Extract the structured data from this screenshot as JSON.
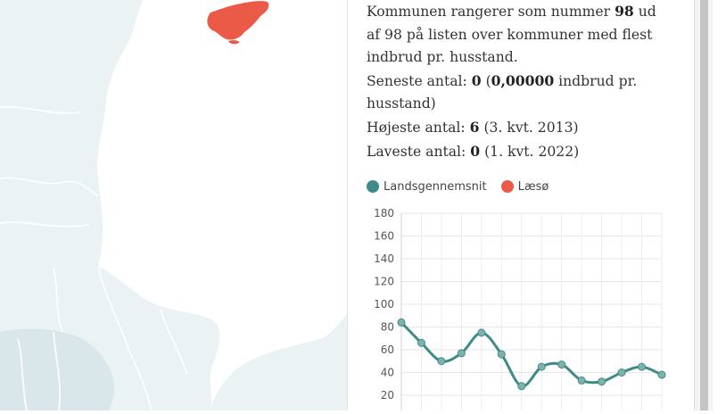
{
  "colors": {
    "accent_red": "#ea5a47",
    "series_national": "#3f8b89",
    "map_land": "#eaf2f4",
    "map_water": "#ffffff"
  },
  "info": {
    "rank_prefix": "Kommunen rangerer som nummer",
    "rank": "98",
    "rank_mid": "ud af",
    "total": "98",
    "rank_suffix": "på listen over kommuner med flest indbrud pr. husstand.",
    "latest_label": "Seneste antal:",
    "latest_value": "0",
    "latest_rate": "0,00000",
    "latest_rate_suffix": "indbrud pr. husstand)",
    "highest_label": "Højeste antal:",
    "highest_value": "6",
    "highest_period": "(3. kvt. 2013)",
    "lowest_label": "Laveste antal:",
    "lowest_value": "0",
    "lowest_period": "(1. kvt. 2022)"
  },
  "legend": {
    "items": [
      {
        "label": "Landsgennemsnit",
        "icon": "dot-teal-icon"
      },
      {
        "label": "Læsø",
        "icon": "dot-red-icon"
      }
    ]
  },
  "chart_data": {
    "type": "line",
    "y_ticks": [
      "180",
      "160",
      "140",
      "120",
      "100",
      "80",
      "60",
      "40",
      "20"
    ],
    "ylim": [
      0,
      180
    ],
    "grid": true,
    "series": [
      {
        "name": "Landsgennemsnit",
        "color": "#3f8b89",
        "values": [
          84,
          66,
          50,
          57,
          75,
          56,
          28,
          45,
          47,
          33,
          32,
          40,
          45,
          38
        ]
      }
    ]
  }
}
